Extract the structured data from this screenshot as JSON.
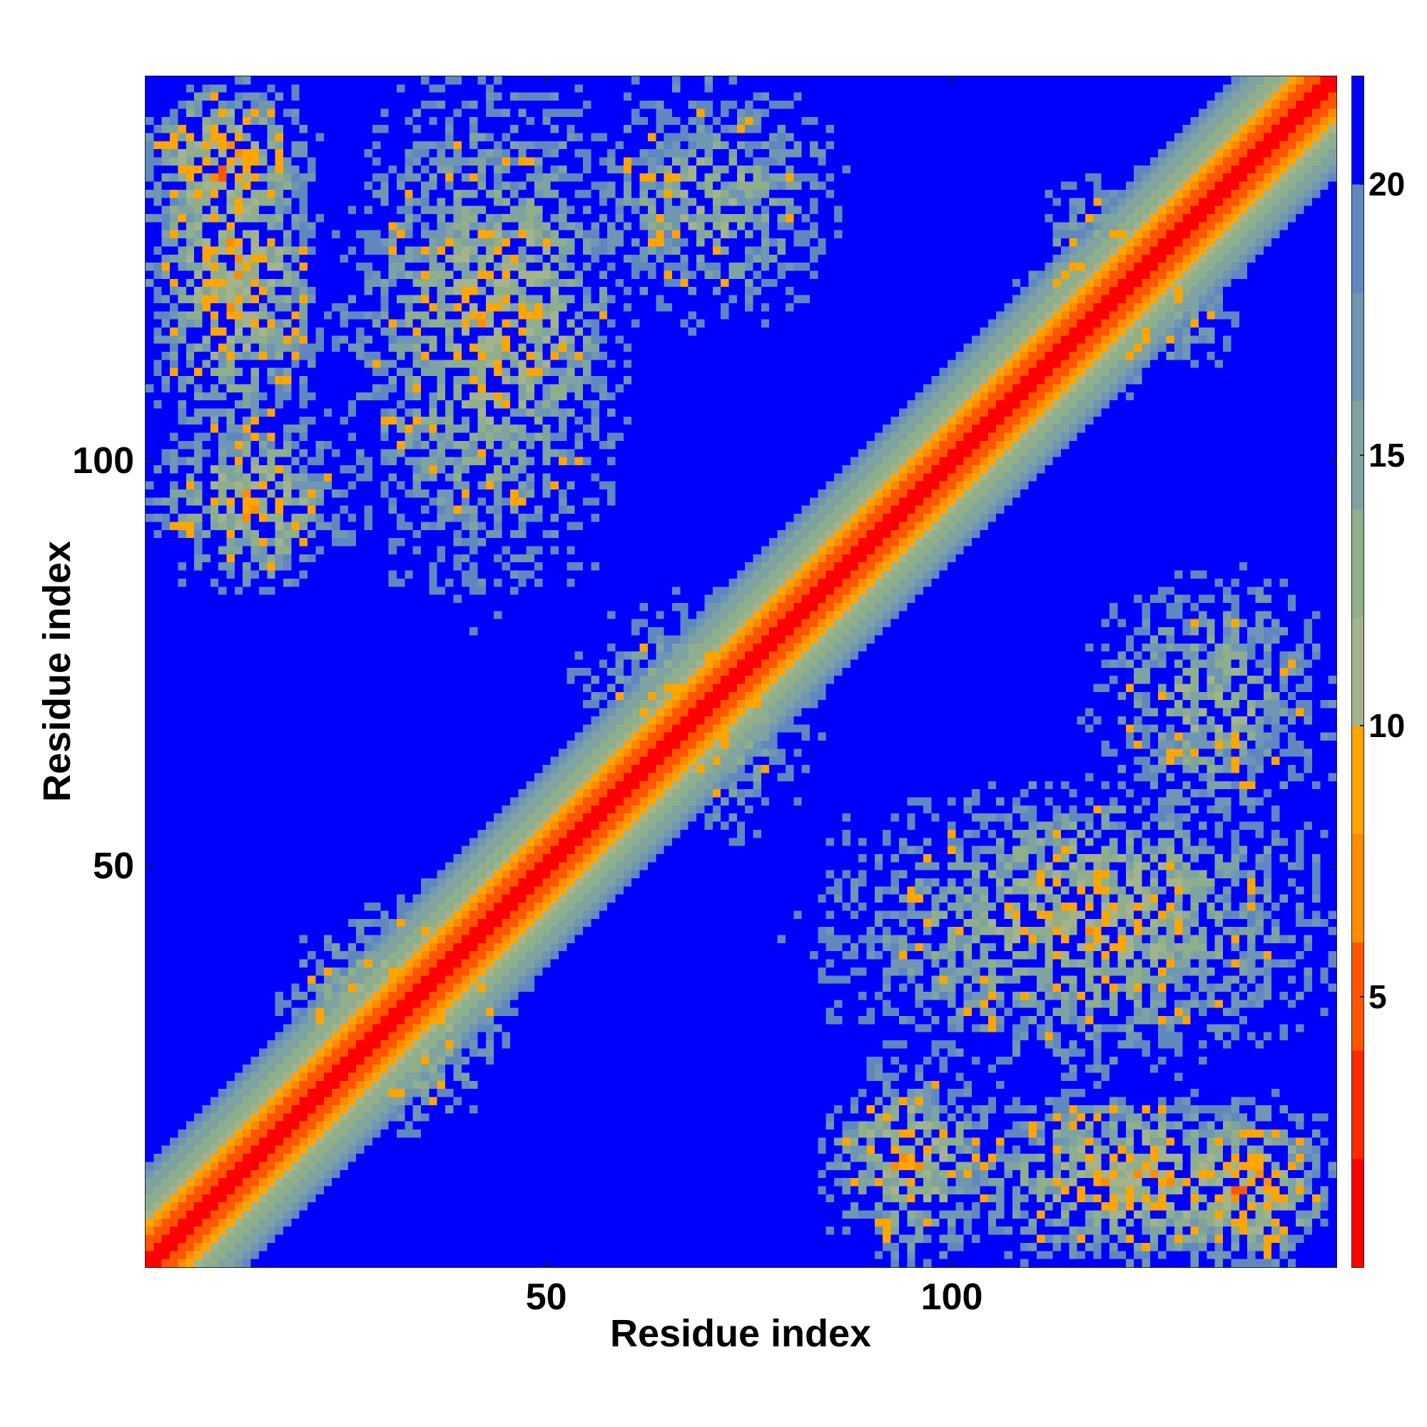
{
  "chart_data": {
    "type": "heatmap",
    "title": "",
    "xlabel": "Residue index",
    "ylabel": "Residue index",
    "n_residues": 147,
    "xlim": [
      1,
      147
    ],
    "ylim": [
      1,
      147
    ],
    "x_ticks": [
      {
        "value": 50,
        "label": "50"
      },
      {
        "value": 100,
        "label": "100"
      }
    ],
    "y_ticks": [
      {
        "value": 50,
        "label": "50"
      },
      {
        "value": 100,
        "label": "100"
      }
    ],
    "colorbar": {
      "range": [
        0,
        22
      ],
      "ticks": [
        {
          "value": 5,
          "label": "5"
        },
        {
          "value": 10,
          "label": "10"
        },
        {
          "value": 15,
          "label": "15"
        },
        {
          "value": 20,
          "label": "20"
        }
      ],
      "cutoff_above": 20,
      "colors": [
        {
          "max": 2,
          "color": "#ff0000"
        },
        {
          "max": 4,
          "color": "#ff2a00"
        },
        {
          "max": 6,
          "color": "#ff5500"
        },
        {
          "max": 8,
          "color": "#ff8c00"
        },
        {
          "max": 10,
          "color": "#ffa500"
        },
        {
          "max": 12,
          "color": "#a3b38c"
        },
        {
          "max": 14,
          "color": "#8fae8c"
        },
        {
          "max": 16,
          "color": "#7fa3a0"
        },
        {
          "max": 18,
          "color": "#6f96b3"
        },
        {
          "max": 20,
          "color": "#5f88bf"
        },
        {
          "max": 22,
          "color": "#0000ff"
        }
      ]
    },
    "description_of_structure": "symmetric residue distance map; diagonal red band; contact clusters at (1-20,125-147), (2-25,88-105), (25-60,95-147), (55-85,65-80), (88-147,40-60), (100-147,1-20), (120-147,55-85)"
  }
}
